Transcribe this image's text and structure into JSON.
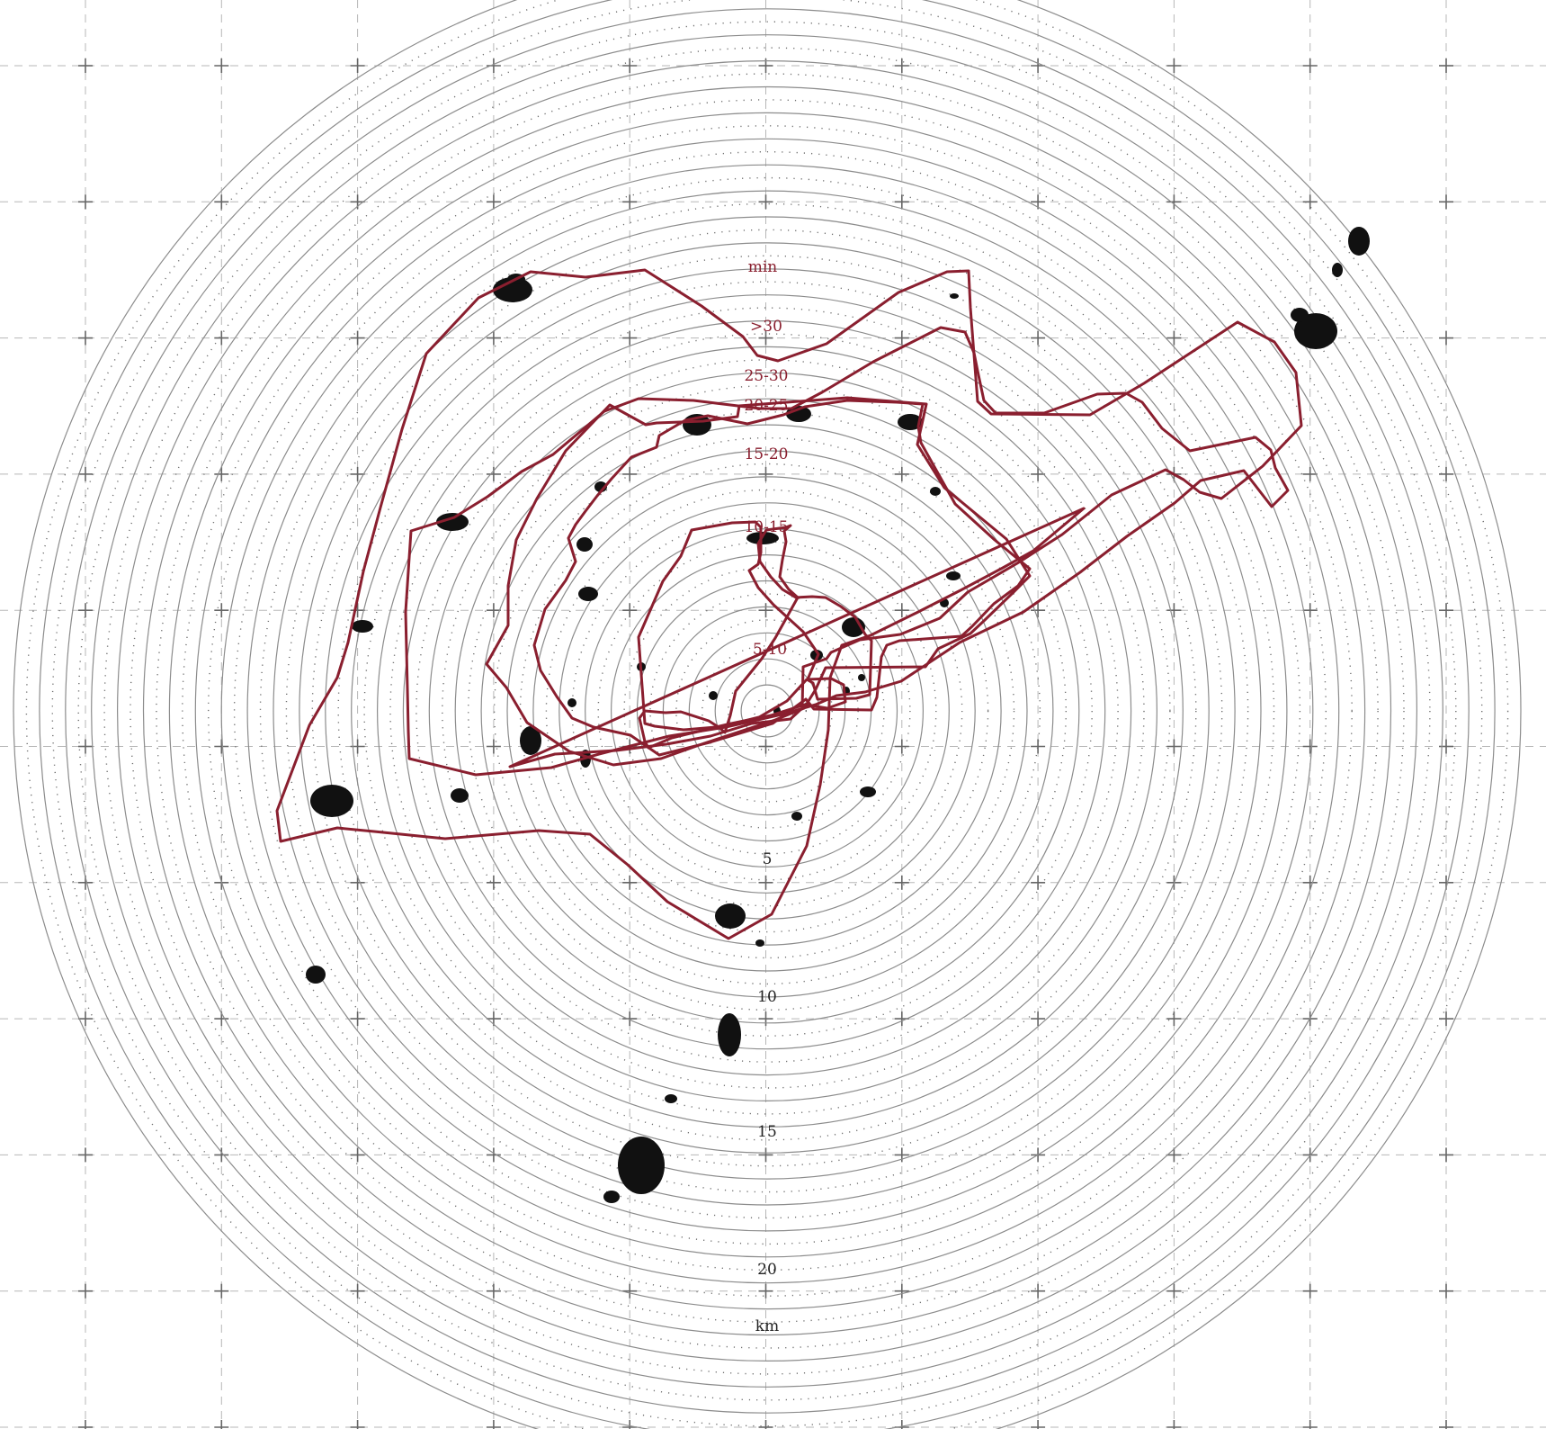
{
  "map": {
    "time_legend": {
      "unit_label": "min",
      "classes": [
        ">30",
        "25-30",
        "20-25",
        "15-20",
        "10-15",
        "5-10"
      ]
    },
    "distance_scale": {
      "unit_label": "km",
      "ticks": [
        "5",
        "10",
        "15",
        "20"
      ]
    },
    "colors": {
      "isochrone": "#8a1f2f",
      "rings": "#8c8c8c",
      "grid": "#b7b7b7",
      "settlements": "#111111",
      "background": "#ffffff"
    },
    "ring_count": 29,
    "isochrone_count": 6
  }
}
